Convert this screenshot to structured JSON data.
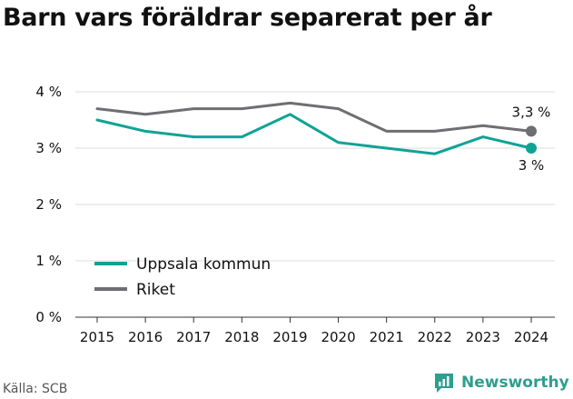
{
  "title": "Barn vars föräldrar separerat per år",
  "source": "Källa: SCB",
  "brand": "Newsworthy",
  "colors": {
    "uppsala": "#0fa396",
    "riket": "#6e6e73",
    "grid": "#dddddd",
    "axis": "#333333",
    "text": "#111111",
    "brand": "#2e9e8e"
  },
  "chart_data": {
    "type": "line",
    "title": "Barn vars föräldrar separerat per år",
    "x": [
      "2015",
      "2016",
      "2017",
      "2018",
      "2019",
      "2020",
      "2021",
      "2022",
      "2023",
      "2024"
    ],
    "series": [
      {
        "name": "Uppsala kommun",
        "color": "#0fa396",
        "values": [
          3.5,
          3.3,
          3.2,
          3.2,
          3.6,
          3.1,
          3.0,
          2.9,
          3.2,
          3.0
        ],
        "end_label": "3 %"
      },
      {
        "name": "Riket",
        "color": "#6e6e73",
        "values": [
          3.7,
          3.6,
          3.7,
          3.7,
          3.8,
          3.7,
          3.3,
          3.3,
          3.4,
          3.3
        ],
        "end_label": "3,3 %"
      }
    ],
    "y_ticks": [
      0,
      1,
      2,
      3,
      4
    ],
    "y_tick_labels": [
      "0 %",
      "1 %",
      "2 %",
      "3 %",
      "4 %"
    ],
    "ylim": [
      0,
      4
    ],
    "grid": true,
    "legend": "inside-lower-left"
  }
}
